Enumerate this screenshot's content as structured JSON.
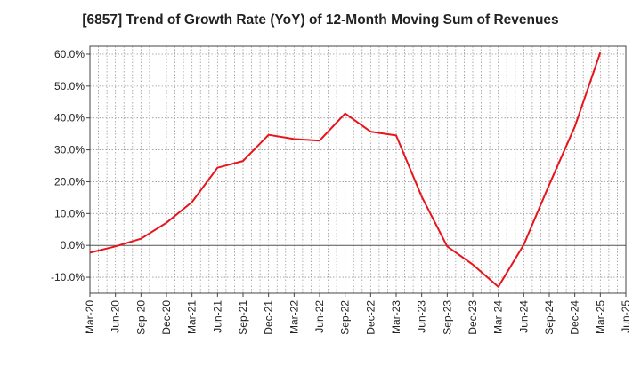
{
  "chart_data": {
    "type": "line",
    "title": "[6857]  Trend of Growth Rate (YoY) of 12-Month Moving Sum of Revenues",
    "xlabel": "",
    "ylabel": "",
    "x_ticks": [
      "Mar-20",
      "Jun-20",
      "Sep-20",
      "Dec-20",
      "Mar-21",
      "Jun-21",
      "Sep-21",
      "Dec-21",
      "Mar-22",
      "Jun-22",
      "Sep-22",
      "Dec-22",
      "Mar-23",
      "Jun-23",
      "Sep-23",
      "Dec-23",
      "Mar-24",
      "Jun-24",
      "Sep-24",
      "Dec-24",
      "Mar-25",
      "Jun-25"
    ],
    "y_ticks": [
      "60.0%",
      "50.0%",
      "40.0%",
      "30.0%",
      "20.0%",
      "10.0%",
      "0.0%",
      "-10.0%"
    ],
    "y_tick_values": [
      60,
      50,
      40,
      30,
      20,
      10,
      0,
      -10
    ],
    "ylim": [
      -15,
      62.5
    ],
    "grid": true,
    "series": [
      {
        "color": "#e8141c",
        "x": [
          "Mar-20",
          "Jun-20",
          "Sep-20",
          "Dec-20",
          "Mar-21",
          "Jun-21",
          "Sep-21",
          "Dec-21",
          "Mar-22",
          "Jun-22",
          "Sep-22",
          "Dec-22",
          "Mar-23",
          "Jun-23",
          "Sep-23",
          "Dec-23",
          "Mar-24",
          "Jun-24",
          "Sep-24",
          "Dec-24",
          "Mar-25"
        ],
        "values": [
          -2.3,
          -0.3,
          2.1,
          7.1,
          13.6,
          24.4,
          26.5,
          34.7,
          33.4,
          32.9,
          41.4,
          35.7,
          34.5,
          15.3,
          -0.3,
          -6.0,
          -13.0,
          0.2,
          19.1,
          37.3,
          60.5
        ]
      }
    ]
  }
}
